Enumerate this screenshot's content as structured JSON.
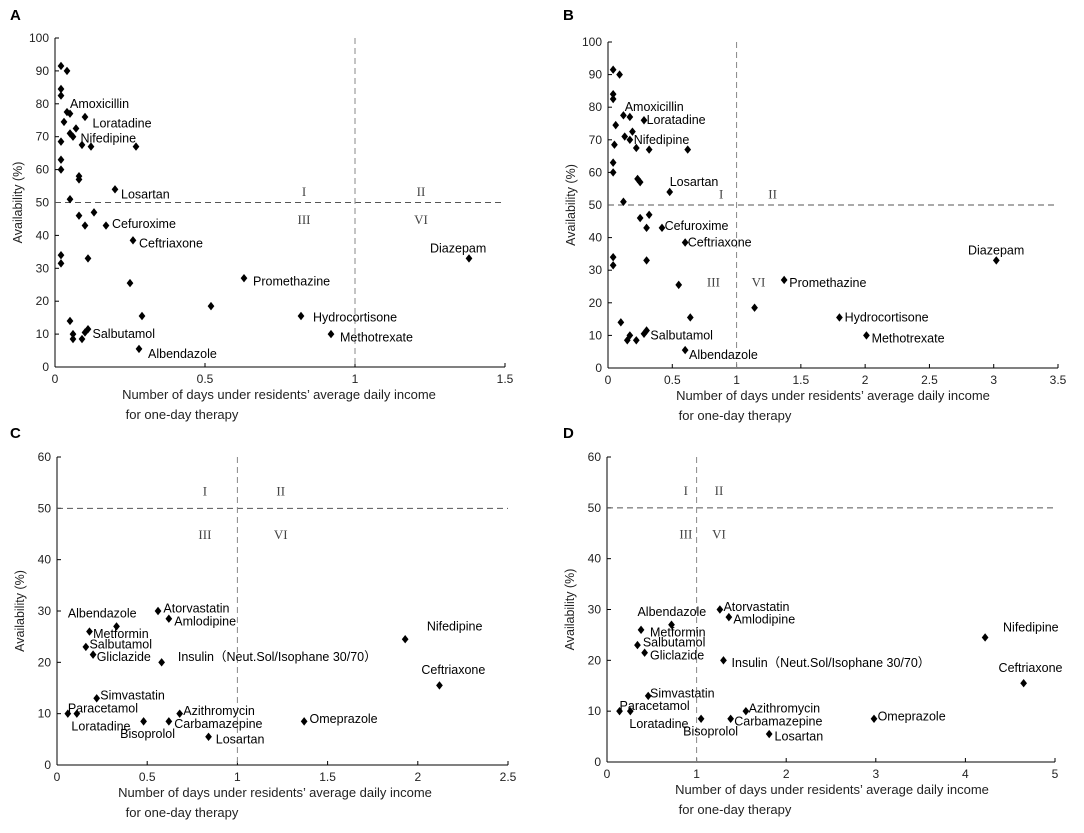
{
  "chart_data": [
    {
      "panel": "A",
      "type": "scatter",
      "xlabel_line1": "Number of days under residents’   average daily income",
      "xlabel_line2": "for one-day therapy",
      "ylabel": "Availability (%)",
      "xlim": [
        0,
        1.5
      ],
      "ylim": [
        0,
        100
      ],
      "xticks": [
        0,
        0.5,
        1,
        1.5
      ],
      "xtick_labels": [
        "0",
        "0.5",
        "1",
        "1.5"
      ],
      "yticks": [
        0,
        10,
        20,
        30,
        40,
        50,
        60,
        70,
        80,
        90,
        100
      ],
      "ref_x": 1,
      "ref_y": 50,
      "quadrant_labels": [
        {
          "text": "I",
          "x": 0.83,
          "y": 53.5
        },
        {
          "text": "II",
          "x": 1.22,
          "y": 53.5
        },
        {
          "text": "III",
          "x": 0.83,
          "y": 45
        },
        {
          "text": "VI",
          "x": 1.22,
          "y": 45
        }
      ],
      "points": [
        {
          "x": 0.02,
          "y": 91.5
        },
        {
          "x": 0.04,
          "y": 90
        },
        {
          "x": 0.02,
          "y": 84.5
        },
        {
          "x": 0.02,
          "y": 82.5
        },
        {
          "x": 0.04,
          "y": 77.5
        },
        {
          "x": 0.05,
          "y": 77
        },
        {
          "x": 0.1,
          "y": 76
        },
        {
          "x": 0.03,
          "y": 74.5
        },
        {
          "x": 0.05,
          "y": 71
        },
        {
          "x": 0.07,
          "y": 72.5
        },
        {
          "x": 0.06,
          "y": 70
        },
        {
          "x": 0.02,
          "y": 68.5
        },
        {
          "x": 0.09,
          "y": 67.5
        },
        {
          "x": 0.12,
          "y": 67
        },
        {
          "x": 0.27,
          "y": 67
        },
        {
          "x": 0.02,
          "y": 63
        },
        {
          "x": 0.02,
          "y": 60
        },
        {
          "x": 0.08,
          "y": 58
        },
        {
          "x": 0.08,
          "y": 57
        },
        {
          "x": 0.2,
          "y": 54
        },
        {
          "x": 0.05,
          "y": 51
        },
        {
          "x": 0.13,
          "y": 47
        },
        {
          "x": 0.08,
          "y": 46
        },
        {
          "x": 0.1,
          "y": 43
        },
        {
          "x": 0.17,
          "y": 43
        },
        {
          "x": 0.26,
          "y": 38.5
        },
        {
          "x": 0.02,
          "y": 34
        },
        {
          "x": 0.02,
          "y": 31.5
        },
        {
          "x": 0.11,
          "y": 33
        },
        {
          "x": 0.25,
          "y": 25.5
        },
        {
          "x": 0.63,
          "y": 27
        },
        {
          "x": 1.38,
          "y": 33
        },
        {
          "x": 0.52,
          "y": 18.5
        },
        {
          "x": 0.82,
          "y": 15.5
        },
        {
          "x": 0.29,
          "y": 15.5
        },
        {
          "x": 0.05,
          "y": 14
        },
        {
          "x": 0.11,
          "y": 11.5
        },
        {
          "x": 0.1,
          "y": 10.5
        },
        {
          "x": 0.06,
          "y": 10
        },
        {
          "x": 0.06,
          "y": 8.5
        },
        {
          "x": 0.09,
          "y": 8.5
        },
        {
          "x": 0.92,
          "y": 10
        },
        {
          "x": 0.28,
          "y": 5.5
        }
      ],
      "annotations": [
        {
          "text": "Amoxicillin",
          "x": 0.05,
          "y": 80
        },
        {
          "text": "Loratadine",
          "x": 0.125,
          "y": 74
        },
        {
          "text": "Nifedipine",
          "x": 0.085,
          "y": 69.5
        },
        {
          "text": "Losartan",
          "x": 0.22,
          "y": 52.5
        },
        {
          "text": "Cefuroxime",
          "x": 0.19,
          "y": 43.5
        },
        {
          "text": "Ceftriaxone",
          "x": 0.28,
          "y": 37.5
        },
        {
          "text": "Promethazine",
          "x": 0.66,
          "y": 26
        },
        {
          "text": "Diazepam",
          "x": 1.25,
          "y": 36
        },
        {
          "text": "Hydrocortisone",
          "x": 0.86,
          "y": 15
        },
        {
          "text": "Methotrexate",
          "x": 0.95,
          "y": 9
        },
        {
          "text": "Salbutamol",
          "x": 0.125,
          "y": 10
        },
        {
          "text": "Albendazole",
          "x": 0.31,
          "y": 4
        }
      ]
    },
    {
      "panel": "B",
      "type": "scatter",
      "xlabel_line1": "Number of days under residents’   average daily income",
      "xlabel_line2": "for one-day therapy",
      "ylabel": "Availability (%)",
      "xlim": [
        0,
        3.5
      ],
      "ylim": [
        0,
        100
      ],
      "xticks": [
        0,
        0.5,
        1,
        1.5,
        2,
        2.5,
        3,
        3.5
      ],
      "xtick_labels": [
        "0",
        "0.5",
        "1",
        "1.5",
        "2",
        "2.5",
        "3",
        "3.5"
      ],
      "yticks": [
        0,
        10,
        20,
        30,
        40,
        50,
        60,
        70,
        80,
        90,
        100
      ],
      "ref_x": 1,
      "ref_y": 50,
      "quadrant_labels": [
        {
          "text": "I",
          "x": 0.88,
          "y": 53.5
        },
        {
          "text": "II",
          "x": 1.28,
          "y": 53.5
        },
        {
          "text": "III",
          "x": 0.82,
          "y": 26.5
        },
        {
          "text": "VI",
          "x": 1.17,
          "y": 26.5
        }
      ],
      "points": [
        {
          "x": 0.04,
          "y": 91.5
        },
        {
          "x": 0.09,
          "y": 90
        },
        {
          "x": 0.04,
          "y": 84
        },
        {
          "x": 0.04,
          "y": 82.5
        },
        {
          "x": 0.12,
          "y": 77.5
        },
        {
          "x": 0.17,
          "y": 77
        },
        {
          "x": 0.28,
          "y": 76
        },
        {
          "x": 0.06,
          "y": 74.5
        },
        {
          "x": 0.13,
          "y": 71
        },
        {
          "x": 0.19,
          "y": 72.5
        },
        {
          "x": 0.17,
          "y": 70
        },
        {
          "x": 0.05,
          "y": 68.5
        },
        {
          "x": 0.22,
          "y": 67.5
        },
        {
          "x": 0.32,
          "y": 67
        },
        {
          "x": 0.62,
          "y": 67
        },
        {
          "x": 0.04,
          "y": 63
        },
        {
          "x": 0.04,
          "y": 60
        },
        {
          "x": 0.23,
          "y": 58
        },
        {
          "x": 0.25,
          "y": 57
        },
        {
          "x": 0.48,
          "y": 54
        },
        {
          "x": 0.12,
          "y": 51
        },
        {
          "x": 0.32,
          "y": 47
        },
        {
          "x": 0.25,
          "y": 46
        },
        {
          "x": 0.3,
          "y": 43
        },
        {
          "x": 0.42,
          "y": 43
        },
        {
          "x": 0.6,
          "y": 38.5
        },
        {
          "x": 0.04,
          "y": 34
        },
        {
          "x": 0.04,
          "y": 31.5
        },
        {
          "x": 0.3,
          "y": 33
        },
        {
          "x": 0.55,
          "y": 25.5
        },
        {
          "x": 1.37,
          "y": 27
        },
        {
          "x": 3.02,
          "y": 33
        },
        {
          "x": 1.14,
          "y": 18.5
        },
        {
          "x": 1.8,
          "y": 15.5
        },
        {
          "x": 0.64,
          "y": 15.5
        },
        {
          "x": 0.1,
          "y": 14
        },
        {
          "x": 0.3,
          "y": 11.5
        },
        {
          "x": 0.28,
          "y": 10.5
        },
        {
          "x": 0.17,
          "y": 10
        },
        {
          "x": 0.15,
          "y": 8.5
        },
        {
          "x": 0.22,
          "y": 8.5
        },
        {
          "x": 2.01,
          "y": 10
        },
        {
          "x": 0.6,
          "y": 5.5
        }
      ],
      "annotations": [
        {
          "text": "Amoxicillin",
          "x": 0.13,
          "y": 80
        },
        {
          "text": "Loratadine",
          "x": 0.3,
          "y": 76
        },
        {
          "text": "Nifedipine",
          "x": 0.2,
          "y": 70
        },
        {
          "text": "Losartan",
          "x": 0.48,
          "y": 57
        },
        {
          "text": "Cefuroxime",
          "x": 0.44,
          "y": 43.5
        },
        {
          "text": "Ceftriaxone",
          "x": 0.62,
          "y": 38.5
        },
        {
          "text": "Promethazine",
          "x": 1.41,
          "y": 26
        },
        {
          "text": "Diazepam",
          "x": 2.8,
          "y": 36
        },
        {
          "text": "Hydrocortisone",
          "x": 1.84,
          "y": 15.5
        },
        {
          "text": "Methotrexate",
          "x": 2.05,
          "y": 9
        },
        {
          "text": "Salbutamol",
          "x": 0.33,
          "y": 10
        },
        {
          "text": "Albendazole",
          "x": 0.63,
          "y": 4
        }
      ]
    },
    {
      "panel": "C",
      "type": "scatter",
      "xlabel_line1": "Number of days under residents’   average daily income",
      "xlabel_line2": "for one-day therapy",
      "ylabel": "Availability (%)",
      "xlim": [
        0,
        2.5
      ],
      "ylim": [
        0,
        60
      ],
      "xticks": [
        0,
        0.5,
        1,
        1.5,
        2,
        2.5
      ],
      "xtick_labels": [
        "0",
        "0.5",
        "1",
        "1.5",
        "2",
        "2.5"
      ],
      "yticks": [
        0,
        10,
        20,
        30,
        40,
        50,
        60
      ],
      "ref_x": 1,
      "ref_y": 50,
      "quadrant_labels": [
        {
          "text": "I",
          "x": 0.82,
          "y": 53.5
        },
        {
          "text": "II",
          "x": 1.24,
          "y": 53.5
        },
        {
          "text": "III",
          "x": 0.82,
          "y": 45
        },
        {
          "text": "VI",
          "x": 1.24,
          "y": 45
        }
      ],
      "points": [
        {
          "x": 0.56,
          "y": 30
        },
        {
          "x": 0.33,
          "y": 27
        },
        {
          "x": 0.62,
          "y": 28.5
        },
        {
          "x": 0.18,
          "y": 26
        },
        {
          "x": 0.16,
          "y": 23
        },
        {
          "x": 0.2,
          "y": 21.5
        },
        {
          "x": 0.58,
          "y": 20
        },
        {
          "x": 1.93,
          "y": 24.5
        },
        {
          "x": 2.12,
          "y": 15.5
        },
        {
          "x": 0.22,
          "y": 13
        },
        {
          "x": 0.06,
          "y": 10
        },
        {
          "x": 0.11,
          "y": 10
        },
        {
          "x": 0.48,
          "y": 8.5
        },
        {
          "x": 0.68,
          "y": 10
        },
        {
          "x": 0.62,
          "y": 8.5
        },
        {
          "x": 0.84,
          "y": 5.5
        },
        {
          "x": 1.37,
          "y": 8.5
        }
      ],
      "annotations": [
        {
          "text": "Atorvastatin",
          "x": 0.59,
          "y": 30.5
        },
        {
          "text": "Albendazole",
          "x": 0.06,
          "y": 29.5
        },
        {
          "text": "Amlodipine",
          "x": 0.65,
          "y": 28
        },
        {
          "text": "Metformin",
          "x": 0.2,
          "y": 25.5
        },
        {
          "text": "Salbutamol",
          "x": 0.18,
          "y": 23.5
        },
        {
          "text": "Gliclazide",
          "x": 0.22,
          "y": 21
        },
        {
          "text": "Insulin（Neut.Sol/Isophane 30/70）",
          "x": 0.67,
          "y": 21
        },
        {
          "text": "Nifedipine",
          "x": 2.05,
          "y": 27
        },
        {
          "text": "Ceftriaxone",
          "x": 2.02,
          "y": 18.5
        },
        {
          "text": "Simvastatin",
          "x": 0.24,
          "y": 13.5
        },
        {
          "text": "Paracetamol",
          "x": 0.06,
          "y": 11
        },
        {
          "text": "Loratadine",
          "x": 0.08,
          "y": 7.5
        },
        {
          "text": "Azithromycin",
          "x": 0.7,
          "y": 10.5
        },
        {
          "text": "Carbamazepine",
          "x": 0.65,
          "y": 8
        },
        {
          "text": "Bisoprolol",
          "x": 0.35,
          "y": 6
        },
        {
          "text": "Losartan",
          "x": 0.88,
          "y": 5
        },
        {
          "text": "Omeprazole",
          "x": 1.4,
          "y": 9
        }
      ]
    },
    {
      "panel": "D",
      "type": "scatter",
      "xlabel_line1": "Number of days under residents’   average daily income",
      "xlabel_line2": "for one-day therapy",
      "ylabel": "Availability (%)",
      "xlim": [
        0,
        5
      ],
      "ylim": [
        0,
        60
      ],
      "xticks": [
        0,
        1,
        2,
        3,
        4,
        5
      ],
      "xtick_labels": [
        "0",
        "1",
        "2",
        "3",
        "4",
        "5"
      ],
      "yticks": [
        0,
        10,
        20,
        30,
        40,
        50,
        60
      ],
      "ref_x": 1,
      "ref_y": 50,
      "quadrant_labels": [
        {
          "text": "I",
          "x": 0.88,
          "y": 53.5
        },
        {
          "text": "II",
          "x": 1.25,
          "y": 53.5
        },
        {
          "text": "III",
          "x": 0.88,
          "y": 45
        },
        {
          "text": "VI",
          "x": 1.25,
          "y": 45
        }
      ],
      "points": [
        {
          "x": 1.26,
          "y": 30
        },
        {
          "x": 0.72,
          "y": 27
        },
        {
          "x": 1.36,
          "y": 28.5
        },
        {
          "x": 0.38,
          "y": 26
        },
        {
          "x": 0.34,
          "y": 23
        },
        {
          "x": 0.42,
          "y": 21.5
        },
        {
          "x": 1.3,
          "y": 20
        },
        {
          "x": 4.22,
          "y": 24.5
        },
        {
          "x": 4.65,
          "y": 15.5
        },
        {
          "x": 0.46,
          "y": 13
        },
        {
          "x": 0.14,
          "y": 10
        },
        {
          "x": 0.26,
          "y": 10
        },
        {
          "x": 1.05,
          "y": 8.5
        },
        {
          "x": 1.55,
          "y": 10
        },
        {
          "x": 1.38,
          "y": 8.5
        },
        {
          "x": 1.81,
          "y": 5.5
        },
        {
          "x": 2.98,
          "y": 8.5
        }
      ],
      "annotations": [
        {
          "text": "Atorvastatin",
          "x": 1.3,
          "y": 30.5
        },
        {
          "text": "Albendazole",
          "x": 0.34,
          "y": 29.5
        },
        {
          "text": "Amlodipine",
          "x": 1.41,
          "y": 28
        },
        {
          "text": "Metformin",
          "x": 0.48,
          "y": 25.5
        },
        {
          "text": "Salbutamol",
          "x": 0.4,
          "y": 23.5
        },
        {
          "text": "Gliclazide",
          "x": 0.48,
          "y": 21
        },
        {
          "text": "Insulin（Neut.Sol/Isophane 30/70）",
          "x": 1.39,
          "y": 19.5
        },
        {
          "text": "Nifedipine",
          "x": 4.42,
          "y": 26.5
        },
        {
          "text": "Ceftriaxone",
          "x": 4.37,
          "y": 18.5
        },
        {
          "text": "Simvastatin",
          "x": 0.48,
          "y": 13.5
        },
        {
          "text": "Paracetamol",
          "x": 0.14,
          "y": 11
        },
        {
          "text": "Loratadine",
          "x": 0.25,
          "y": 7.5
        },
        {
          "text": "Azithromycin",
          "x": 1.58,
          "y": 10.5
        },
        {
          "text": "Carbamazepine",
          "x": 1.42,
          "y": 8
        },
        {
          "text": "Bisoprolol",
          "x": 0.85,
          "y": 6
        },
        {
          "text": "Losartan",
          "x": 1.87,
          "y": 5
        },
        {
          "text": "Omeprazole",
          "x": 3.02,
          "y": 9
        }
      ]
    }
  ]
}
